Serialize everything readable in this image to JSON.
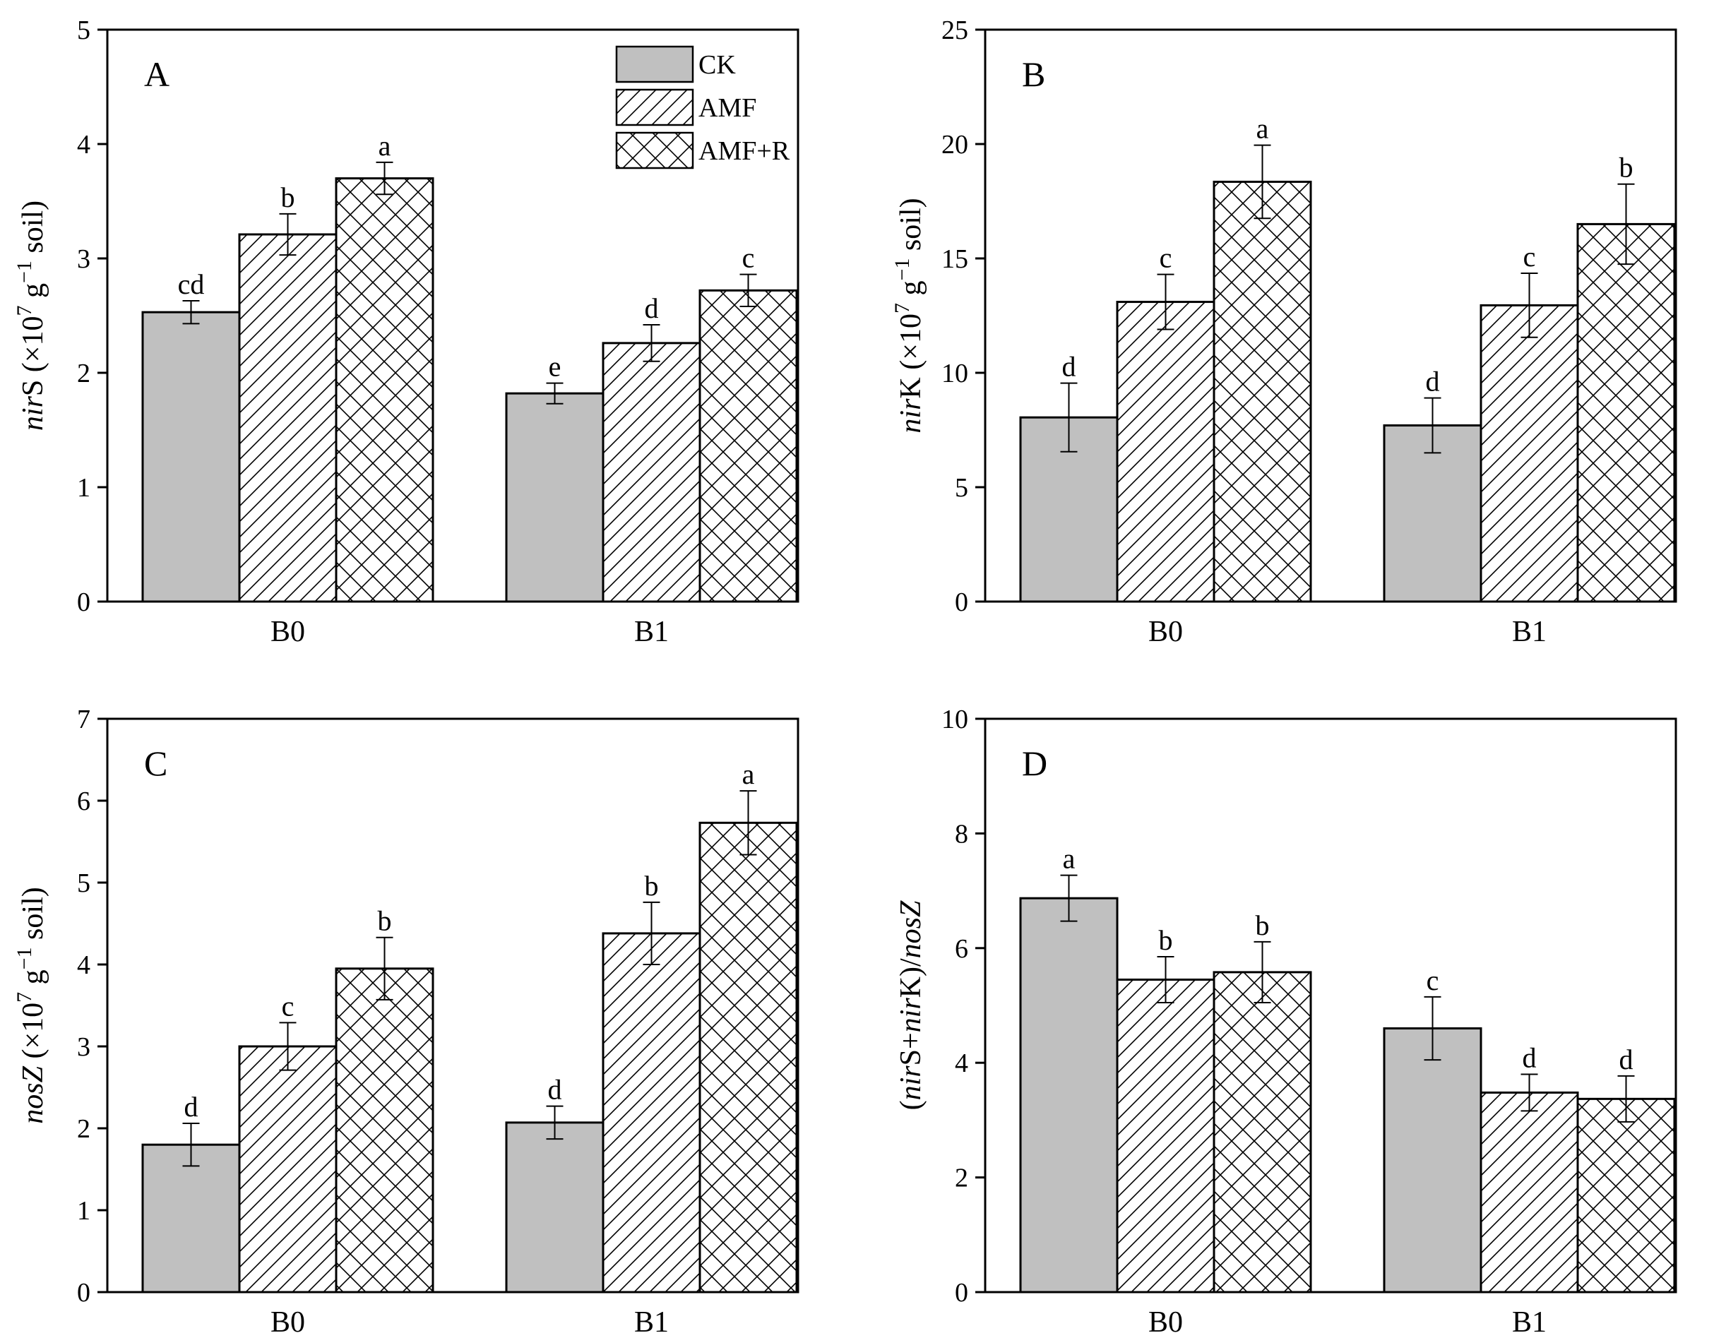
{
  "chart_data": [
    {
      "type": "bar",
      "panel": "A",
      "ylabel": {
        "gene": "nir",
        "gene_suffix": "S",
        "unit_prefix": " (×10",
        "exp": "7",
        "unit_mid": " g",
        "exp2": "−1",
        "unit_suffix": " soil)"
      },
      "ylim": [
        0,
        5
      ],
      "yticks": [
        0,
        1,
        2,
        3,
        4,
        5
      ],
      "categories": [
        "B0",
        "B1"
      ],
      "series": [
        {
          "name": "CK",
          "values": [
            2.53,
            1.82
          ],
          "errors": [
            0.1,
            0.09
          ],
          "letters": [
            "cd",
            "e"
          ]
        },
        {
          "name": "AMF",
          "values": [
            3.21,
            2.26
          ],
          "errors": [
            0.18,
            0.16
          ],
          "letters": [
            "b",
            "d"
          ]
        },
        {
          "name": "AMF+R",
          "values": [
            3.7,
            2.72
          ],
          "errors": [
            0.14,
            0.14
          ],
          "letters": [
            "a",
            "c"
          ]
        }
      ],
      "legend": {
        "entries": [
          "CK",
          "AMF",
          "AMF+R"
        ],
        "placement": "top-right"
      }
    },
    {
      "type": "bar",
      "panel": "B",
      "ylabel": {
        "gene": "nir",
        "gene_suffix": "K",
        "unit_prefix": " (×10",
        "exp": "7",
        "unit_mid": " g",
        "exp2": "−1",
        "unit_suffix": " soil)"
      },
      "ylim": [
        0,
        25
      ],
      "yticks": [
        0,
        5,
        10,
        15,
        20,
        25
      ],
      "categories": [
        "B0",
        "B1"
      ],
      "series": [
        {
          "name": "CK",
          "values": [
            8.05,
            7.7
          ],
          "errors": [
            1.5,
            1.2
          ],
          "letters": [
            "d",
            "d"
          ]
        },
        {
          "name": "AMF",
          "values": [
            13.1,
            12.95
          ],
          "errors": [
            1.2,
            1.4
          ],
          "letters": [
            "c",
            "c"
          ]
        },
        {
          "name": "AMF+R",
          "values": [
            18.35,
            16.5
          ],
          "errors": [
            1.6,
            1.75
          ],
          "letters": [
            "a",
            "b"
          ]
        }
      ]
    },
    {
      "type": "bar",
      "panel": "C",
      "ylabel": {
        "gene": "nosZ",
        "gene_suffix": "",
        "unit_prefix": " (×10",
        "exp": "7",
        "unit_mid": " g",
        "exp2": "−1",
        "unit_suffix": " soil)"
      },
      "ylim": [
        0,
        7
      ],
      "yticks": [
        0,
        1,
        2,
        3,
        4,
        5,
        6,
        7
      ],
      "categories": [
        "B0",
        "B1"
      ],
      "series": [
        {
          "name": "CK",
          "values": [
            1.8,
            2.07
          ],
          "errors": [
            0.26,
            0.2
          ],
          "letters": [
            "d",
            "d"
          ]
        },
        {
          "name": "AMF",
          "values": [
            3.0,
            4.38
          ],
          "errors": [
            0.29,
            0.38
          ],
          "letters": [
            "c",
            "b"
          ]
        },
        {
          "name": "AMF+R",
          "values": [
            3.95,
            5.73
          ],
          "errors": [
            0.38,
            0.39
          ],
          "letters": [
            "b",
            "a"
          ]
        }
      ]
    },
    {
      "type": "bar",
      "panel": "D",
      "ylabel": {
        "lead": "(",
        "p1": "nir",
        "p2": "S+",
        "p3": "nir",
        "p4": "K)/",
        "p5": "nosZ"
      },
      "ylim": [
        0,
        10
      ],
      "yticks": [
        0,
        2,
        4,
        6,
        8,
        10
      ],
      "categories": [
        "B0",
        "B1"
      ],
      "series": [
        {
          "name": "CK",
          "values": [
            6.87,
            4.6
          ],
          "errors": [
            0.4,
            0.55
          ],
          "letters": [
            "a",
            "c"
          ]
        },
        {
          "name": "AMF",
          "values": [
            5.45,
            3.48
          ],
          "errors": [
            0.4,
            0.32
          ],
          "letters": [
            "b",
            "d"
          ]
        },
        {
          "name": "AMF+R",
          "values": [
            5.58,
            3.37
          ],
          "errors": [
            0.53,
            0.4
          ],
          "letters": [
            "b",
            "d"
          ]
        }
      ]
    }
  ]
}
